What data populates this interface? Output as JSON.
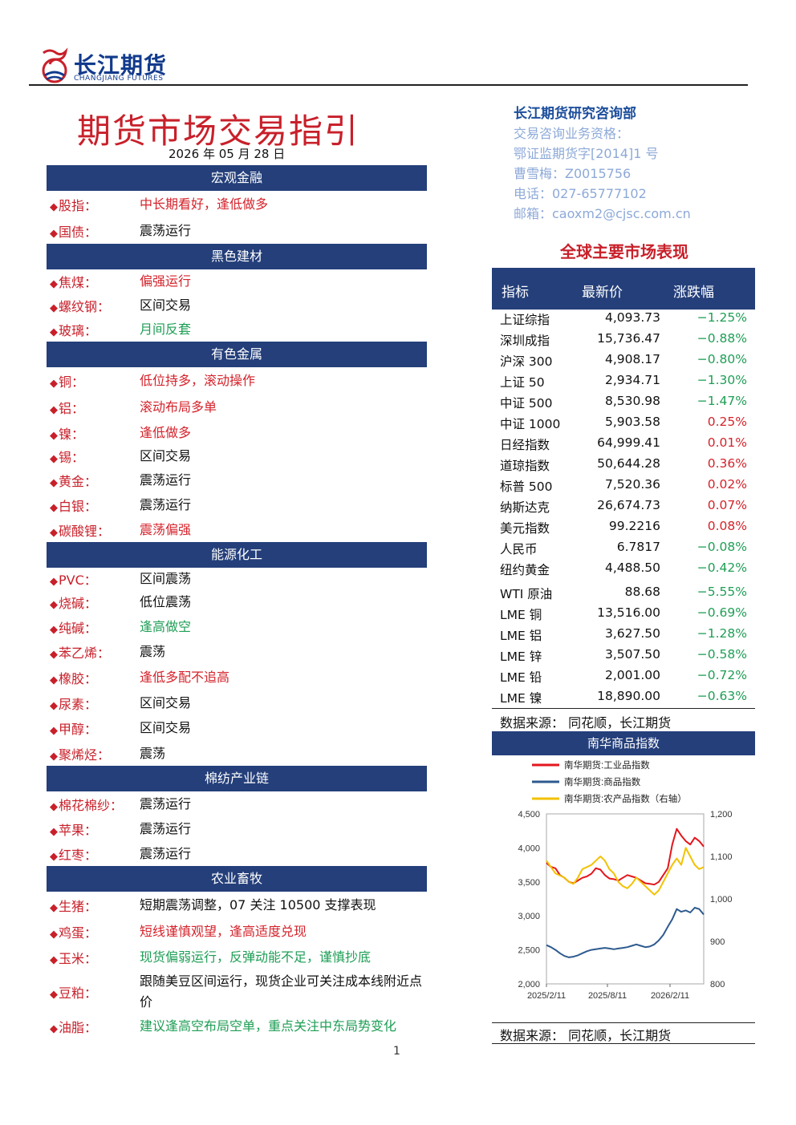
{
  "header": {
    "logo_cn": "长江期货",
    "logo_en": "CHANGJIANG FUTURES"
  },
  "title": "期货市场交易指引",
  "date": "2026 年 05 月 28 日",
  "colors": {
    "navy": "#243f7a",
    "red": "#d4232b",
    "green": "#1e9e55",
    "black": "#111111"
  },
  "sections": [
    {
      "name": "宏观金融",
      "items": [
        {
          "label": "股指：",
          "value": "中长期看好，逢低做多",
          "color": "red",
          "h": 33
        },
        {
          "label": "国债：",
          "value": "震荡运行",
          "color": "black",
          "h": 33
        }
      ]
    },
    {
      "name": "黑色建材",
      "items": [
        {
          "label": "焦煤：",
          "value": "偏强运行",
          "color": "red",
          "h": 30
        },
        {
          "label": "螺纹钢：",
          "value": "区间交易",
          "color": "black",
          "h": 30
        },
        {
          "label": "玻璃：",
          "value": "月间反套",
          "color": "green",
          "h": 30
        }
      ]
    },
    {
      "name": "有色金属",
      "items": [
        {
          "label": "铜：",
          "value": "低位持多，滚动操作",
          "color": "red",
          "h": 33
        },
        {
          "label": "铝：",
          "value": "滚动布局多单",
          "color": "red",
          "h": 33
        },
        {
          "label": "镍：",
          "value": "逢低做多",
          "color": "red",
          "h": 31
        },
        {
          "label": "锡：",
          "value": "区间交易",
          "color": "black",
          "h": 28
        },
        {
          "label": "黄金：",
          "value": "震荡运行",
          "color": "black",
          "h": 31
        },
        {
          "label": "白银：",
          "value": "震荡运行",
          "color": "black",
          "h": 31
        },
        {
          "label": "碳酸锂：",
          "value": "震荡偏强",
          "color": "red",
          "h": 31
        }
      ]
    },
    {
      "name": "能源化工",
      "items": [
        {
          "label": "PVC：",
          "value": "区间震荡",
          "color": "black",
          "h": 28
        },
        {
          "label": "烧碱：",
          "value": "低位震荡",
          "color": "black",
          "h": 30
        },
        {
          "label": "纯碱：",
          "value": "逢高做空",
          "color": "green",
          "h": 31
        },
        {
          "label": "苯乙烯：",
          "value": "震荡",
          "color": "black",
          "h": 31
        },
        {
          "label": "橡胶：",
          "value": "逢低多配不追高",
          "color": "red",
          "h": 33
        },
        {
          "label": "尿素：",
          "value": "区间交易",
          "color": "black",
          "h": 31
        },
        {
          "label": "甲醇：",
          "value": "区间交易",
          "color": "black",
          "h": 32
        },
        {
          "label": "聚烯烃：",
          "value": "震荡",
          "color": "black",
          "h": 31
        }
      ]
    },
    {
      "name": "棉纺产业链",
      "items": [
        {
          "label": "棉花棉纱：",
          "value": "震荡运行",
          "color": "black",
          "h": 31
        },
        {
          "label": "苹果：",
          "value": "震荡运行",
          "color": "black",
          "h": 31
        },
        {
          "label": "红枣：",
          "value": "震荡运行",
          "color": "black",
          "h": 31
        }
      ]
    },
    {
      "name": "农业畜牧",
      "items": [
        {
          "label": "生猪：",
          "value": "短期震荡调整，07 关注 10500 支撑表现",
          "color": "black",
          "h": 33
        },
        {
          "label": "鸡蛋：",
          "value": "短线谨慎观望，逢高适度兑现",
          "color": "red",
          "h": 33
        },
        {
          "label": "玉米：",
          "value": "现货偏弱运行，反弹动能不足，谨慎抄底",
          "color": "green",
          "h": 32
        },
        {
          "label": "豆粕：",
          "value": "跟随美豆区间运行，现货企业可关注成本线附近点价",
          "color": "black",
          "h": 54
        },
        {
          "label": "油脂：",
          "value": "建议逢高空布局空单，重点关注中东局势变化",
          "color": "green",
          "h": 32
        }
      ]
    }
  ],
  "research": {
    "dept": "长江期货研究咨询部",
    "line1": "交易咨询业务资格：",
    "line2": "鄂证监期货字[2014]1 号",
    "line3": "曹雪梅：Z0015756",
    "line4": "电话：027-65777102",
    "line5": "邮箱：caoxm2@cjsc.com.cn"
  },
  "global": {
    "title": "全球主要市场表现",
    "headers": [
      "指标",
      "最新价",
      "涨跌幅"
    ],
    "rows": [
      {
        "name": "上证综指",
        "price": "4,093.73",
        "change": "−1.25%",
        "dir": "down"
      },
      {
        "name": "深圳成指",
        "price": "15,736.47",
        "change": "−0.88%",
        "dir": "down"
      },
      {
        "name": "沪深 300",
        "price": "4,908.17",
        "change": "−0.80%",
        "dir": "down"
      },
      {
        "name": "上证 50",
        "price": "2,934.71",
        "change": "−1.30%",
        "dir": "down"
      },
      {
        "name": "中证 500",
        "price": "8,530.98",
        "change": "−1.47%",
        "dir": "down"
      },
      {
        "name": "中证 1000",
        "price": "5,903.58",
        "change": "0.25%",
        "dir": "up"
      },
      {
        "name": "日经指数",
        "price": "64,999.41",
        "change": "0.01%",
        "dir": "up"
      },
      {
        "name": "道琼指数",
        "price": "50,644.28",
        "change": "0.36%",
        "dir": "up"
      },
      {
        "name": "标普 500",
        "price": "7,520.36",
        "change": "0.02%",
        "dir": "up"
      },
      {
        "name": "纳斯达克",
        "price": "26,674.73",
        "change": "0.07%",
        "dir": "up"
      },
      {
        "name": "美元指数",
        "price": "99.2216",
        "change": "0.08%",
        "dir": "up"
      },
      {
        "name": "人民币",
        "price": "6.7817",
        "change": "−0.08%",
        "dir": "down"
      },
      {
        "name": "纽约黄金",
        "price": "4,488.50",
        "change": "−0.42%",
        "dir": "down"
      },
      {
        "name": "WTI 原油",
        "price": "88.68",
        "change": "−5.55%",
        "dir": "down"
      },
      {
        "name": "LME 铜",
        "price": "13,516.00",
        "change": "−0.69%",
        "dir": "down"
      },
      {
        "name": "LME 铝",
        "price": "3,627.50",
        "change": "−1.28%",
        "dir": "down"
      },
      {
        "name": "LME 锌",
        "price": "3,507.50",
        "change": "−0.58%",
        "dir": "down"
      },
      {
        "name": "LME 铅",
        "price": "2,001.00",
        "change": "−0.72%",
        "dir": "down"
      },
      {
        "name": "LME 镍",
        "price": "18,890.00",
        "change": "−0.63%",
        "dir": "down"
      }
    ],
    "source": "数据来源：  同花顺，长江期货"
  },
  "chart_data": {
    "type": "line",
    "title": "南华商品指数",
    "x_ticks": [
      "2025/2/11",
      "2025/8/11",
      "2026/2/11"
    ],
    "ylim_left": [
      2000,
      4500
    ],
    "yticks_left": [
      "4,500",
      "4,000",
      "3,500",
      "3,000",
      "2,500",
      "2,000"
    ],
    "ylim_right": [
      800,
      1200
    ],
    "yticks_right": [
      "1,200",
      "1,100",
      "1,000",
      "900",
      "800"
    ],
    "series": [
      {
        "name": "南华期货:工业品指数",
        "axis": "left",
        "color": "#e3161c",
        "values": [
          3780,
          3720,
          3700,
          3600,
          3560,
          3500,
          3480,
          3520,
          3560,
          3580,
          3620,
          3700,
          3680,
          3600,
          3550,
          3540,
          3520,
          3560,
          3600,
          3580,
          3560,
          3520,
          3480,
          3470,
          3460,
          3500,
          3600,
          3700,
          4050,
          4280,
          4180,
          4100,
          4050,
          4150,
          4100,
          4020
        ]
      },
      {
        "name": "南华期货:商品指数",
        "axis": "left",
        "color": "#2d5a8e",
        "values": [
          2570,
          2540,
          2500,
          2450,
          2410,
          2390,
          2400,
          2420,
          2450,
          2480,
          2500,
          2510,
          2520,
          2530,
          2520,
          2510,
          2520,
          2530,
          2540,
          2560,
          2580,
          2560,
          2540,
          2550,
          2580,
          2640,
          2720,
          2840,
          2950,
          3100,
          3060,
          3080,
          3050,
          3120,
          3100,
          3020
        ]
      },
      {
        "name": "南华期货:农产品指数（右轴）",
        "axis": "right",
        "color": "#f2c200",
        "values": [
          1090,
          1075,
          1060,
          1055,
          1050,
          1040,
          1035,
          1050,
          1070,
          1075,
          1080,
          1090,
          1100,
          1090,
          1070,
          1060,
          1040,
          1030,
          1025,
          1035,
          1050,
          1040,
          1030,
          1020,
          1010,
          1020,
          1040,
          1060,
          1080,
          1095,
          1080,
          1120,
          1100,
          1080,
          1070,
          1075
        ]
      }
    ],
    "source": "数据来源：   同花顺，长江期货"
  },
  "page_number": "1"
}
